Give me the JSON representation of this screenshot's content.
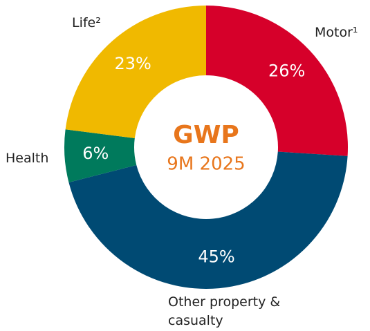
{
  "chart_data": {
    "type": "donut",
    "center_title": "GWP",
    "center_subtitle": "9M 2025",
    "categories": [
      "Motor¹",
      "Other property & casualty",
      "Health",
      "Life²"
    ],
    "values": [
      26,
      45,
      6,
      23
    ],
    "value_labels": [
      "26%",
      "45%",
      "6%",
      "23%"
    ],
    "colors": [
      "#d6002a",
      "#004a73",
      "#007a5c",
      "#f0b900"
    ]
  }
}
